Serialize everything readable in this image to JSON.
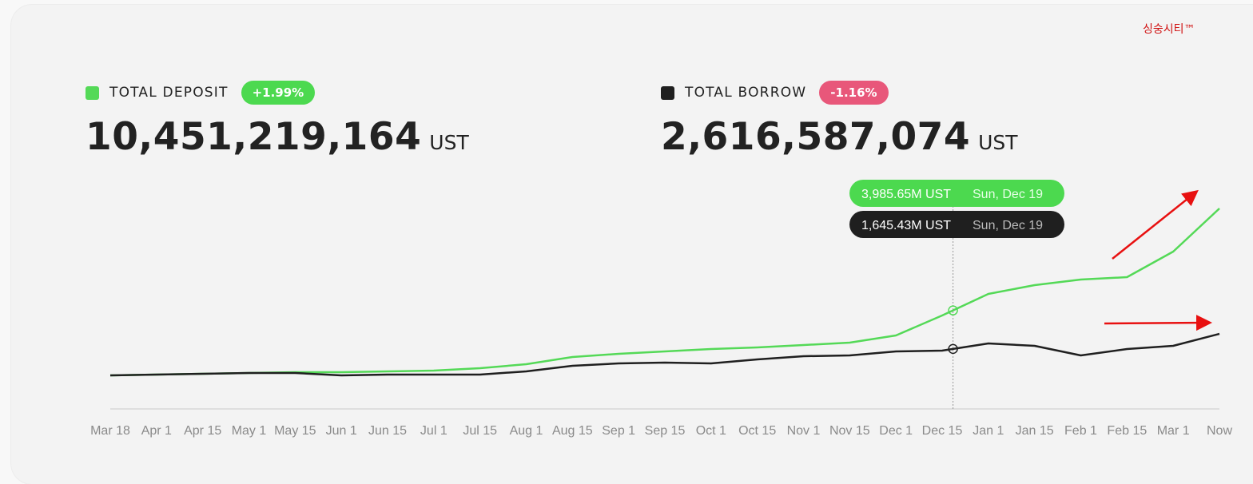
{
  "watermark": "싱숭시티™",
  "deposit": {
    "label": "TOTAL DEPOSIT",
    "change": "+1.99%",
    "amount": "10,451,219,164",
    "unit": "UST"
  },
  "borrow": {
    "label": "TOTAL BORROW",
    "change": "-1.16%",
    "amount": "2,616,587,074",
    "unit": "UST"
  },
  "tooltip": {
    "deposit_value": "3,985.65M UST",
    "borrow_value": "1,645.43M UST",
    "date": "Sun, Dec 19"
  },
  "chart_data": {
    "type": "line",
    "categories": [
      "Mar 18",
      "Apr 1",
      "Apr 15",
      "May 1",
      "May 15",
      "Jun 1",
      "Jun 15",
      "Jul 1",
      "Jul 15",
      "Aug 1",
      "Aug 15",
      "Sep 1",
      "Sep 15",
      "Oct 1",
      "Oct 15",
      "Nov 1",
      "Nov 15",
      "Dec 1",
      "Dec 15",
      "Jan 1",
      "Jan 15",
      "Feb 1",
      "Feb 15",
      "Mar 1",
      "Now"
    ],
    "series": [
      {
        "name": "TOTAL DEPOSIT",
        "color": "#54d957",
        "values": [
          0,
          50,
          100,
          150,
          200,
          200,
          250,
          300,
          450,
          700,
          1150,
          1350,
          1500,
          1650,
          1750,
          1900,
          2050,
          2500,
          3750,
          5100,
          5650,
          6000,
          6150,
          7750,
          10450
        ]
      },
      {
        "name": "TOTAL BORROW",
        "color": "#1f1f1f",
        "values": [
          0,
          50,
          100,
          150,
          150,
          0,
          50,
          50,
          50,
          250,
          600,
          750,
          800,
          750,
          1000,
          1200,
          1250,
          1500,
          1550,
          2000,
          1850,
          1250,
          1650,
          1850,
          2600
        ]
      }
    ],
    "ylim": [
      -2100,
      12000
    ]
  }
}
